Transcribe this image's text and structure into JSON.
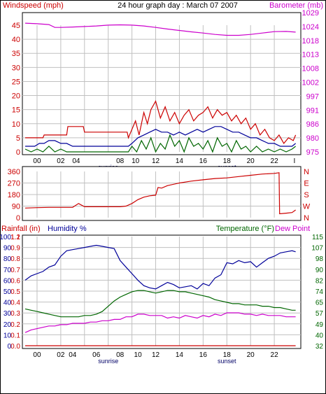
{
  "header": {
    "wind_label": "Windspeed (mph)",
    "title": "24 hour graph day : March 07 2007",
    "baro_label": "Barometer (mb)"
  },
  "colors": {
    "frame": "#000000",
    "grid": "#c0c0c0",
    "wind_axis": "#cc0000",
    "baro_axis": "#cc00cc",
    "humidity": "#000099",
    "temperature": "#006600",
    "dewpoint": "#cc00cc",
    "rain": "#cc0000",
    "sun_labels": "#000066"
  },
  "chart_data": [
    {
      "type": "line",
      "name": "windspeed-barometer",
      "x_ticks": [
        "00",
        "02",
        "04",
        "08",
        "10",
        "12",
        "14",
        "16",
        "18",
        "20",
        "22",
        "I"
      ],
      "x_tick_hours": [
        1,
        3,
        4.3,
        8,
        9.3,
        11,
        13,
        15,
        17,
        19,
        21,
        22.7
      ],
      "sunrise_label": "sunrise",
      "sunrise_hour": 7,
      "sunset_label": "sunset",
      "sunset_hour": 17,
      "left_axis": {
        "ticks": [
          "0",
          "5",
          "10",
          "15",
          "20",
          "25",
          "30",
          "35",
          "40",
          "45"
        ],
        "ylim": [
          0,
          45
        ]
      },
      "right_axis": {
        "ticks": [
          "975",
          "980",
          "986",
          "991",
          "997",
          "1002",
          "1008",
          "1013",
          "1018",
          "1024",
          "1029"
        ]
      },
      "series": [
        {
          "key": "gust",
          "color": "#cc0000",
          "x": [
            0,
            1.5,
            1.6,
            3.5,
            3.6,
            4.9,
            5,
            8.6,
            8.7,
            9.3,
            9.6,
            10,
            10.3,
            10.6,
            11,
            11.4,
            11.8,
            12.2,
            12.6,
            13,
            13.4,
            13.8,
            14.2,
            14.6,
            15,
            15.4,
            15.8,
            16.2,
            16.6,
            17,
            17.4,
            17.8,
            18.2,
            18.6,
            19,
            19.4,
            19.8,
            20.2,
            20.6,
            21,
            21.4,
            21.8,
            22.2,
            22.6,
            22.8
          ],
          "y": [
            5,
            5,
            6,
            6,
            9,
            9,
            7,
            7,
            5,
            11,
            6,
            14,
            10,
            15,
            18,
            12,
            16,
            11,
            14,
            10,
            13,
            15,
            11,
            13,
            14,
            16,
            12,
            15,
            13,
            14,
            11,
            13,
            10,
            12,
            8,
            10,
            6,
            8,
            5,
            4,
            6,
            3,
            5,
            4,
            6
          ]
        },
        {
          "key": "average",
          "color": "#000099",
          "x": [
            0,
            0.8,
            1.2,
            1.6,
            2,
            2.5,
            3,
            3.5,
            4,
            8.7,
            9,
            9.5,
            10,
            10.5,
            11,
            11.5,
            12,
            12.5,
            13,
            13.5,
            14,
            14.5,
            15,
            15.5,
            16,
            16.5,
            17,
            17.5,
            18,
            18.5,
            19,
            19.5,
            20,
            20.5,
            21,
            21.5,
            22,
            22.5,
            22.8
          ],
          "y": [
            2,
            2,
            3,
            3,
            4,
            4,
            3,
            3,
            2,
            2,
            3,
            5,
            6,
            7,
            8,
            7,
            7,
            6,
            7,
            6,
            7,
            8,
            7,
            8,
            9,
            9,
            8,
            7,
            7,
            6,
            5,
            5,
            4,
            3,
            3,
            2,
            2,
            2,
            3
          ]
        },
        {
          "key": "wind_low",
          "color": "#006600",
          "x": [
            0,
            0.5,
            1,
            1.5,
            2,
            2.5,
            3,
            3.5,
            4,
            8.7,
            9,
            9.4,
            9.8,
            10.2,
            10.6,
            11,
            11.4,
            11.8,
            12.2,
            12.6,
            13,
            13.4,
            13.8,
            14.2,
            14.6,
            15,
            15.4,
            15.8,
            16.2,
            16.6,
            17,
            17.4,
            17.8,
            18.2,
            18.6,
            19,
            19.5,
            20,
            20.5,
            21,
            21.5,
            22,
            22.5,
            22.8
          ],
          "y": [
            1,
            0,
            1,
            0,
            2,
            0,
            1,
            0,
            0,
            0,
            2,
            0,
            4,
            1,
            5,
            0,
            3,
            1,
            6,
            2,
            4,
            0,
            5,
            2,
            3,
            1,
            4,
            0,
            5,
            2,
            3,
            0,
            4,
            1,
            2,
            0,
            2,
            0,
            1,
            0,
            1,
            0,
            1,
            2
          ]
        },
        {
          "key": "barometer",
          "color": "#cc00cc",
          "x": [
            0,
            1,
            2,
            2.5,
            3,
            4,
            5,
            6,
            7,
            8,
            9,
            10,
            11,
            12,
            13,
            14,
            15,
            16,
            17,
            18,
            19,
            20,
            21,
            22,
            22.8
          ],
          "y": [
            1025.2,
            1025,
            1024.7,
            1023.6,
            1023.6,
            1023.8,
            1024,
            1024.2,
            1024.5,
            1024.6,
            1024.5,
            1024.2,
            1023.6,
            1022.9,
            1022.3,
            1021.7,
            1021.2,
            1020.6,
            1020.2,
            1020.2,
            1020.6,
            1021.2,
            1021.8,
            1021.9,
            1021.6
          ]
        }
      ]
    },
    {
      "type": "line",
      "name": "wind-direction",
      "left_axis": {
        "ticks": [
          "0",
          "90",
          "180",
          "270",
          "360"
        ],
        "ylim": [
          0,
          360
        ]
      },
      "right_axis": {
        "ticks": [
          "N",
          "W",
          "S",
          "E",
          "N"
        ]
      },
      "series": [
        {
          "key": "direction",
          "color": "#cc0000",
          "x": [
            0,
            1,
            2,
            2.5,
            3,
            4,
            4.5,
            5,
            6,
            7,
            8,
            8.5,
            9,
            9.5,
            10,
            10.5,
            11,
            11.2,
            11.5,
            12,
            13,
            14,
            15,
            16,
            17,
            18,
            19,
            20,
            21,
            21.4,
            21.45,
            22,
            22.5,
            22.8
          ],
          "y": [
            75,
            78,
            80,
            80,
            80,
            80,
            110,
            85,
            85,
            85,
            85,
            90,
            110,
            140,
            160,
            170,
            175,
            235,
            230,
            250,
            270,
            285,
            295,
            305,
            310,
            320,
            330,
            340,
            345,
            350,
            30,
            35,
            40,
            60
          ]
        }
      ]
    },
    {
      "type": "line",
      "name": "humidity-temperature",
      "x_ticks": [
        "00",
        "02",
        "04",
        "06",
        "08",
        "10",
        "12",
        "14",
        "16",
        "18",
        "20",
        "22"
      ],
      "x_tick_hours": [
        1,
        3,
        4,
        6,
        8,
        9.5,
        11,
        13,
        15,
        17,
        19,
        21
      ],
      "sunrise_label": "sunrise",
      "sunrise_hour": 7,
      "sunset_label": "sunset",
      "sunset_hour": 17,
      "rain_label": "Rainfall (in)",
      "humidity_label": "Humidity %",
      "temp_label": "Temperature (°F)",
      "dew_label": "Dew Point",
      "rain_axis": {
        "ticks": [
          "0.0",
          "0.1",
          "0.2",
          "0.3",
          "0.4",
          "0.5",
          "0.6",
          "0.7",
          "0.8",
          "0.9",
          "1.1",
          "1.2"
        ]
      },
      "humidity_axis": {
        "ticks": [
          "0",
          "10",
          "20",
          "30",
          "40",
          "50",
          "60",
          "70",
          "80",
          "90",
          "100"
        ],
        "ylim": [
          0,
          100
        ]
      },
      "temp_axis": {
        "ticks": [
          "32",
          "40",
          "49",
          "57",
          "65",
          "74",
          "82",
          "90",
          "98",
          "107",
          "115"
        ],
        "ylim": [
          32,
          115
        ]
      },
      "series": [
        {
          "key": "humidity",
          "color": "#000099",
          "x": [
            0,
            0.5,
            1,
            1.5,
            2,
            2.5,
            3,
            3.5,
            4,
            4.5,
            5,
            5.5,
            6,
            6.5,
            7,
            7.5,
            8,
            8.5,
            9,
            9.5,
            10,
            10.5,
            11,
            11.5,
            12,
            12.5,
            13,
            13.5,
            14,
            14.5,
            15,
            15.5,
            16,
            16.5,
            17,
            17.5,
            18,
            18.5,
            19,
            19.5,
            20,
            20.5,
            21,
            21.5,
            22,
            22.5,
            22.8
          ],
          "y": [
            60,
            64,
            66,
            68,
            72,
            74,
            82,
            87,
            88,
            89,
            90,
            91,
            92,
            91,
            90,
            89,
            78,
            72,
            66,
            60,
            55,
            53,
            52,
            55,
            58,
            56,
            53,
            54,
            55,
            52,
            57,
            55,
            62,
            65,
            76,
            75,
            78,
            76,
            77,
            72,
            76,
            80,
            82,
            85,
            86,
            87,
            86
          ]
        },
        {
          "key": "temperature",
          "color": "#006600",
          "x": [
            0,
            0.5,
            1,
            1.5,
            2,
            2.5,
            3,
            3.5,
            4,
            4.5,
            5,
            5.5,
            6,
            6.5,
            7,
            7.5,
            8,
            8.5,
            9,
            9.5,
            10,
            10.5,
            11,
            11.5,
            12,
            12.5,
            13,
            13.5,
            14,
            14.5,
            15,
            15.5,
            16,
            16.5,
            17,
            17.5,
            18,
            18.5,
            19,
            19.5,
            20,
            20.5,
            21,
            21.5,
            22,
            22.5,
            22.8
          ],
          "y": [
            60,
            59,
            58,
            57,
            56,
            55,
            54,
            54,
            54,
            54,
            55,
            55,
            56,
            58,
            62,
            66,
            69,
            71,
            73,
            74,
            74,
            73,
            72,
            73,
            74,
            74,
            73,
            73,
            72,
            71,
            70,
            69,
            67,
            66,
            65,
            64,
            64,
            63,
            63,
            63,
            62,
            62,
            61,
            61,
            60,
            59,
            59
          ]
        },
        {
          "key": "dewpoint",
          "color": "#cc00cc",
          "x": [
            0,
            0.5,
            1,
            1.5,
            2,
            2.5,
            3,
            3.5,
            4,
            4.5,
            5,
            5.5,
            6,
            6.5,
            7,
            7.5,
            8,
            8.5,
            9,
            9.5,
            10,
            10.5,
            11,
            11.5,
            12,
            12.5,
            13,
            13.5,
            14,
            14.5,
            15,
            15.5,
            16,
            16.5,
            17,
            17.5,
            18,
            18.5,
            19,
            19.5,
            20,
            20.5,
            21,
            21.5,
            22,
            22.5,
            22.8
          ],
          "y": [
            42,
            44,
            45,
            46,
            47,
            47,
            48,
            48,
            49,
            49,
            49,
            50,
            50,
            51,
            51,
            52,
            52,
            54,
            54,
            56,
            56,
            55,
            55,
            55,
            53,
            54,
            53,
            55,
            54,
            53,
            55,
            54,
            56,
            55,
            57,
            57,
            57,
            56,
            56,
            55,
            56,
            55,
            55,
            55,
            54,
            54,
            54
          ]
        },
        {
          "key": "rainfall",
          "color": "#cc0000",
          "x": [
            0,
            22.8
          ],
          "y": [
            0,
            0
          ]
        }
      ]
    }
  ]
}
